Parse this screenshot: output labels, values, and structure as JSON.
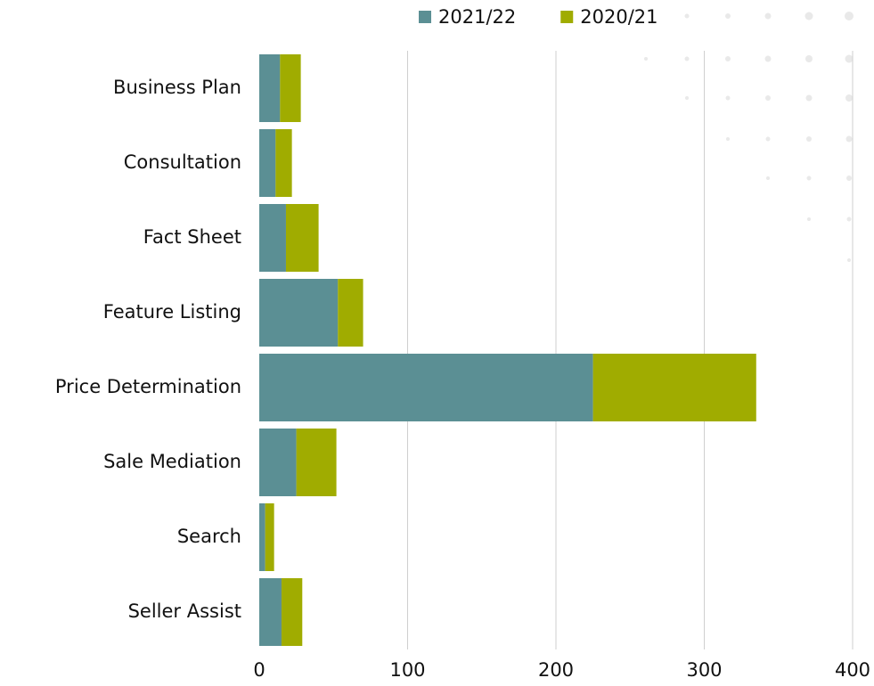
{
  "chart_data": {
    "type": "stacked-barh",
    "categories": [
      "Business Plan",
      "Consultation",
      "Fact Sheet",
      "Feature Listing",
      "Price Determination",
      "Sale Mediation",
      "Search",
      "Seller Assist"
    ],
    "series": [
      {
        "name": "2021/22",
        "color": "#5b8f94",
        "values": [
          14,
          11,
          18,
          53,
          225,
          25,
          4,
          15
        ]
      },
      {
        "name": "2020/21",
        "color": "#a0ac00",
        "values": [
          14,
          11,
          22,
          17,
          110,
          27,
          6,
          14
        ]
      }
    ],
    "xlim": [
      0,
      400
    ],
    "xticks": [
      0,
      100,
      200,
      300,
      400
    ],
    "grid": true,
    "legend": "top"
  }
}
